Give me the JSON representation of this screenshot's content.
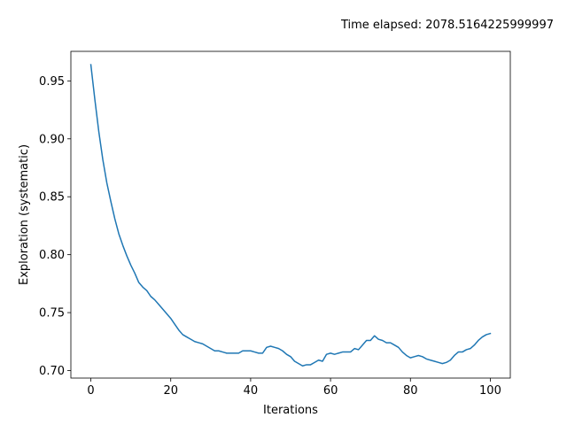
{
  "annotation": "Time elapsed: 2078.5164225999997",
  "chart_data": {
    "type": "line",
    "title": "",
    "xlabel": "Iterations",
    "ylabel": "Exploration (systematic)",
    "xlim": [
      -5,
      105
    ],
    "ylim": [
      0.6935,
      0.9755
    ],
    "xticks": [
      0,
      20,
      40,
      60,
      80,
      100
    ],
    "xtick_labels": [
      "0",
      "20",
      "40",
      "60",
      "80",
      "100"
    ],
    "yticks": [
      0.7,
      0.75,
      0.8,
      0.85,
      0.9,
      0.95
    ],
    "ytick_labels": [
      "0.70",
      "0.75",
      "0.80",
      "0.85",
      "0.90",
      "0.95"
    ],
    "grid": false,
    "color": "#1f77b4",
    "series": [
      {
        "x": [
          0,
          1,
          2,
          3,
          4,
          5,
          6,
          7,
          8,
          9,
          10,
          11,
          12,
          13,
          14,
          15,
          16,
          17,
          18,
          19,
          20,
          21,
          22,
          23,
          24,
          25,
          26,
          27,
          28,
          29,
          30,
          31,
          32,
          33,
          34,
          35,
          36,
          37,
          38,
          39,
          40,
          41,
          42,
          43,
          44,
          45,
          46,
          47,
          48,
          49,
          50,
          51,
          52,
          53,
          54,
          55,
          56,
          57,
          58,
          59,
          60,
          61,
          62,
          63,
          64,
          65,
          66,
          67,
          68,
          69,
          70,
          71,
          72,
          73,
          74,
          75,
          76,
          77,
          78,
          79,
          80,
          81,
          82,
          83,
          84,
          85,
          86,
          87,
          88,
          89,
          90,
          91,
          92,
          93,
          94,
          95,
          96,
          97,
          98,
          99,
          100
        ],
        "y": [
          0.964,
          0.934,
          0.906,
          0.882,
          0.862,
          0.846,
          0.831,
          0.818,
          0.808,
          0.799,
          0.791,
          0.784,
          0.776,
          0.772,
          0.769,
          0.764,
          0.761,
          0.757,
          0.753,
          0.749,
          0.745,
          0.74,
          0.735,
          0.731,
          0.729,
          0.727,
          0.725,
          0.724,
          0.723,
          0.721,
          0.719,
          0.717,
          0.717,
          0.716,
          0.715,
          0.715,
          0.715,
          0.715,
          0.717,
          0.717,
          0.717,
          0.716,
          0.715,
          0.715,
          0.72,
          0.721,
          0.72,
          0.719,
          0.717,
          0.714,
          0.712,
          0.708,
          0.706,
          0.704,
          0.705,
          0.705,
          0.707,
          0.709,
          0.708,
          0.714,
          0.715,
          0.714,
          0.715,
          0.716,
          0.716,
          0.716,
          0.719,
          0.718,
          0.722,
          0.726,
          0.726,
          0.73,
          0.727,
          0.726,
          0.724,
          0.724,
          0.722,
          0.72,
          0.716,
          0.713,
          0.711,
          0.712,
          0.713,
          0.712,
          0.71,
          0.709,
          0.708,
          0.707,
          0.706,
          0.707,
          0.709,
          0.713,
          0.716,
          0.716,
          0.718,
          0.719,
          0.722,
          0.726,
          0.729,
          0.731,
          0.732
        ]
      }
    ]
  }
}
